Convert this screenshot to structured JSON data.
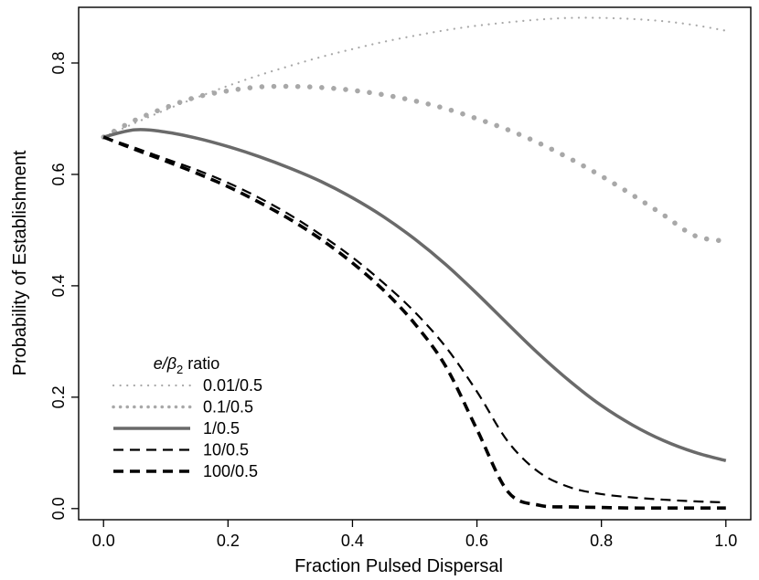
{
  "chart_data": {
    "type": "line",
    "xlabel": "Fraction Pulsed Dispersal",
    "ylabel": "Probability of Establishment",
    "xlim": [
      -0.04,
      1.04
    ],
    "ylim": [
      -0.02,
      0.9
    ],
    "x_ticks": [
      "0.0",
      "0.2",
      "0.4",
      "0.6",
      "0.8",
      "1.0"
    ],
    "y_ticks": [
      "0.0",
      "0.2",
      "0.4",
      "0.6",
      "0.8"
    ],
    "legend": {
      "title_italic": "e/β",
      "title_subscript": "2",
      "title_suffix": " ratio",
      "position": "bottom-left"
    },
    "series": [
      {
        "name": "0.01/0.5",
        "style": "dotted-fine",
        "color": "#a8a8a8",
        "x": [
          0.0,
          0.05,
          0.1,
          0.15,
          0.2,
          0.25,
          0.3,
          0.35,
          0.4,
          0.45,
          0.5,
          0.55,
          0.6,
          0.65,
          0.7,
          0.75,
          0.8,
          0.85,
          0.9,
          0.95,
          1.0
        ],
        "values": [
          0.667,
          0.692,
          0.716,
          0.738,
          0.759,
          0.778,
          0.795,
          0.811,
          0.825,
          0.838,
          0.849,
          0.859,
          0.867,
          0.873,
          0.878,
          0.881,
          0.881,
          0.879,
          0.875,
          0.868,
          0.858
        ]
      },
      {
        "name": "0.1/0.5",
        "style": "dotted-coarse",
        "color": "#a8a8a8",
        "x": [
          0.0,
          0.05,
          0.1,
          0.15,
          0.2,
          0.25,
          0.3,
          0.35,
          0.4,
          0.45,
          0.5,
          0.55,
          0.6,
          0.65,
          0.7,
          0.75,
          0.8,
          0.85,
          0.9,
          0.95,
          1.0
        ],
        "values": [
          0.667,
          0.697,
          0.72,
          0.739,
          0.75,
          0.757,
          0.758,
          0.756,
          0.751,
          0.743,
          0.732,
          0.718,
          0.7,
          0.68,
          0.656,
          0.628,
          0.597,
          0.563,
          0.527,
          0.49,
          0.48
        ]
      },
      {
        "name": "1/0.5",
        "style": "solid",
        "color": "#6a6a6a",
        "x": [
          0.0,
          0.05,
          0.1,
          0.15,
          0.2,
          0.25,
          0.3,
          0.35,
          0.4,
          0.45,
          0.5,
          0.55,
          0.6,
          0.65,
          0.7,
          0.75,
          0.8,
          0.85,
          0.9,
          0.95,
          1.0
        ],
        "values": [
          0.667,
          0.68,
          0.676,
          0.665,
          0.65,
          0.632,
          0.611,
          0.587,
          0.558,
          0.524,
          0.484,
          0.438,
          0.386,
          0.331,
          0.277,
          0.228,
          0.185,
          0.15,
          0.122,
          0.101,
          0.086
        ]
      },
      {
        "name": "10/0.5",
        "style": "dashed-thin",
        "color": "#000000",
        "x": [
          0.0,
          0.05,
          0.1,
          0.15,
          0.2,
          0.25,
          0.3,
          0.35,
          0.4,
          0.45,
          0.5,
          0.55,
          0.6,
          0.65,
          0.7,
          0.75,
          0.8,
          0.85,
          0.9,
          0.95,
          1.0
        ],
        "values": [
          0.667,
          0.648,
          0.628,
          0.608,
          0.585,
          0.558,
          0.527,
          0.491,
          0.451,
          0.405,
          0.353,
          0.29,
          0.21,
          0.12,
          0.065,
          0.038,
          0.026,
          0.02,
          0.016,
          0.013,
          0.011
        ]
      },
      {
        "name": "100/0.5",
        "style": "dashed-thick",
        "color": "#000000",
        "x": [
          0.0,
          0.05,
          0.1,
          0.15,
          0.2,
          0.25,
          0.3,
          0.35,
          0.4,
          0.45,
          0.5,
          0.55,
          0.6,
          0.65,
          0.7,
          0.75,
          0.8,
          0.85,
          0.9,
          0.95,
          1.0
        ],
        "values": [
          0.667,
          0.645,
          0.624,
          0.602,
          0.578,
          0.55,
          0.519,
          0.483,
          0.441,
          0.392,
          0.332,
          0.255,
          0.142,
          0.03,
          0.006,
          0.003,
          0.002,
          0.001,
          0.001,
          0.001,
          0.001
        ]
      }
    ]
  }
}
